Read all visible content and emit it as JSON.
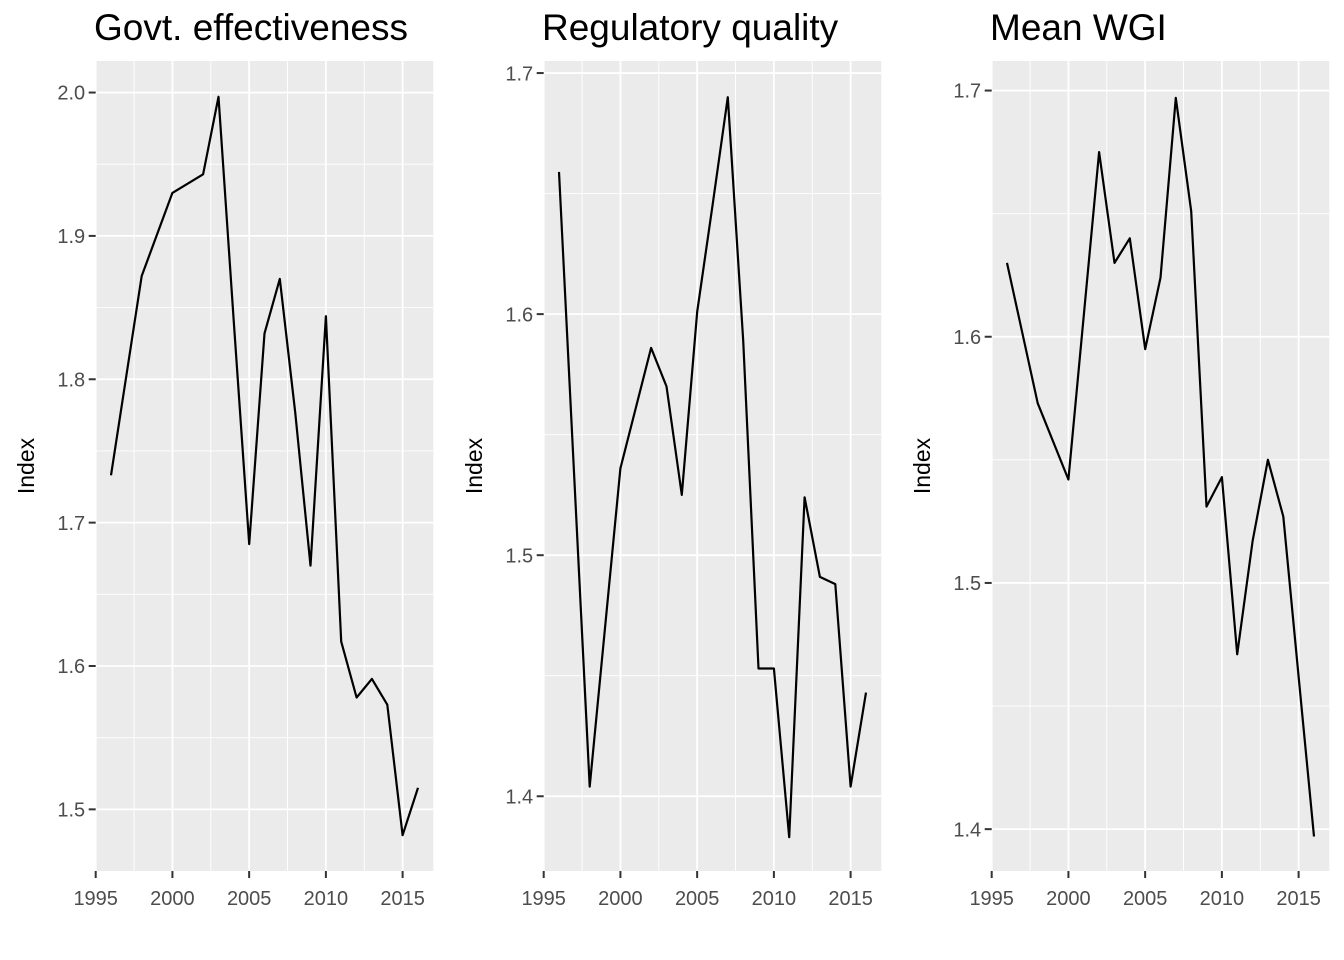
{
  "figure": {
    "colors": {
      "outer_bg": "#FFFFFF",
      "panel_bg": "#EBEBEB",
      "grid_major": "#FFFFFF",
      "grid_minor": "#FFFFFF",
      "data_line": "#000000",
      "tick_mark": "#333333",
      "tick_label": "#4D4D4D",
      "title_text": "#000000"
    }
  },
  "chart_data": [
    {
      "type": "line",
      "title": "Govt. effectiveness",
      "xlabel": "",
      "ylabel": "Index",
      "legend": "none",
      "grid": "major+minor",
      "x": [
        1996,
        1998,
        2000,
        2002,
        2003,
        2004,
        2005,
        2006,
        2007,
        2008,
        2009,
        2010,
        2011,
        2012,
        2013,
        2014,
        2015,
        2016
      ],
      "values": [
        1.733,
        1.872,
        1.93,
        1.943,
        1.997,
        1.84,
        1.685,
        1.832,
        1.87,
        1.777,
        1.67,
        1.844,
        1.617,
        1.578,
        1.591,
        1.573,
        1.482,
        1.515
      ],
      "xlim": [
        1995,
        2017
      ],
      "ylim": [
        1.457,
        2.022
      ],
      "x_ticks": [
        1995,
        2000,
        2005,
        2010,
        2015
      ],
      "x_tick_labels": [
        "1995",
        "2000",
        "2005",
        "2010",
        "2015"
      ],
      "x_minor_ticks": [
        1997.5,
        2002.5,
        2007.5,
        2012.5
      ],
      "y_ticks": [
        2.0,
        1.9,
        1.8,
        1.7,
        1.6,
        1.5
      ],
      "y_tick_labels": [
        "2.0",
        "1.9",
        "1.8",
        "1.7",
        "1.6",
        "1.5"
      ],
      "y_minor_ticks": [
        1.95,
        1.85,
        1.75,
        1.65,
        1.55
      ]
    },
    {
      "type": "line",
      "title": "Regulatory quality",
      "xlabel": "",
      "ylabel": "Index",
      "legend": "none",
      "grid": "major+minor",
      "x": [
        1996,
        1998,
        2000,
        2002,
        2003,
        2004,
        2005,
        2006,
        2007,
        2008,
        2009,
        2010,
        2011,
        2012,
        2013,
        2014,
        2015,
        2016
      ],
      "values": [
        1.659,
        1.404,
        1.536,
        1.586,
        1.57,
        1.525,
        1.601,
        1.645,
        1.69,
        1.589,
        1.453,
        1.453,
        1.383,
        1.524,
        1.491,
        1.488,
        1.404,
        1.443
      ],
      "xlim": [
        1995,
        2017
      ],
      "ylim": [
        1.369,
        1.705
      ],
      "x_ticks": [
        1995,
        2000,
        2005,
        2010,
        2015
      ],
      "x_tick_labels": [
        "1995",
        "2000",
        "2005",
        "2010",
        "2015"
      ],
      "x_minor_ticks": [
        1997.5,
        2002.5,
        2007.5,
        2012.5
      ],
      "y_ticks": [
        1.7,
        1.6,
        1.5,
        1.4
      ],
      "y_tick_labels": [
        "1.7",
        "1.6",
        "1.5",
        "1.4"
      ],
      "y_minor_ticks": [
        1.65,
        1.55,
        1.45
      ]
    },
    {
      "type": "line",
      "title": "Mean WGI",
      "xlabel": "",
      "ylabel": "Index",
      "legend": "none",
      "grid": "major+minor",
      "x": [
        1996,
        1998,
        2000,
        2002,
        2003,
        2004,
        2005,
        2006,
        2007,
        2008,
        2009,
        2010,
        2011,
        2012,
        2013,
        2014,
        2015,
        2016
      ],
      "values": [
        1.63,
        1.573,
        1.542,
        1.675,
        1.63,
        1.64,
        1.595,
        1.624,
        1.697,
        1.651,
        1.531,
        1.543,
        1.471,
        1.517,
        1.55,
        1.527,
        1.462,
        1.397
      ],
      "xlim": [
        1995,
        2017
      ],
      "ylim": [
        1.383,
        1.712
      ],
      "x_ticks": [
        1995,
        2000,
        2005,
        2010,
        2015
      ],
      "x_tick_labels": [
        "1995",
        "2000",
        "2005",
        "2010",
        "2015"
      ],
      "x_minor_ticks": [
        1997.5,
        2002.5,
        2007.5,
        2012.5
      ],
      "y_ticks": [
        1.7,
        1.6,
        1.5,
        1.4
      ],
      "y_tick_labels": [
        "1.7",
        "1.6",
        "1.5",
        "1.4"
      ],
      "y_minor_ticks": [
        1.65,
        1.55,
        1.45
      ]
    }
  ]
}
